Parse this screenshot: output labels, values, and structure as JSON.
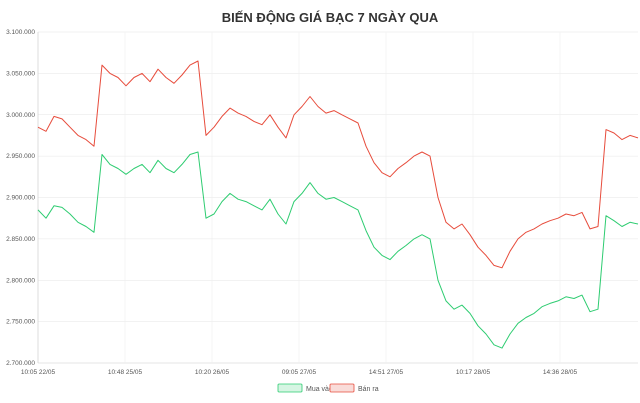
{
  "chart_data": {
    "type": "line",
    "title": "BIẾN ĐỘNG GIÁ BẠC 7 NGÀY QUA",
    "xlabel": "",
    "ylabel": "",
    "x_tick_labels": [
      "10:05 22/05",
      "10:48 25/05",
      "10:20 26/05",
      "09:05 27/05",
      "14:51 27/05",
      "10:17 28/05",
      "14:36 28/05"
    ],
    "y_tick_labels": [
      "2.700.000",
      "2.750.000",
      "2.800.000",
      "2.850.000",
      "2.900.000",
      "2.950.000",
      "3.000.000",
      "3.050.000",
      "3.100.000"
    ],
    "ylim": [
      2700000,
      3100000
    ],
    "grid": true,
    "legend_position": "bottom",
    "series": [
      {
        "name": "Mua vào",
        "color": "#2ecc71",
        "fill": "#d6f5e3",
        "values": [
          2885000,
          2875000,
          2890000,
          2888000,
          2880000,
          2870000,
          2865000,
          2858000,
          2952000,
          2940000,
          2935000,
          2928000,
          2935000,
          2940000,
          2930000,
          2945000,
          2935000,
          2930000,
          2940000,
          2952000,
          2955000,
          2875000,
          2880000,
          2895000,
          2905000,
          2898000,
          2895000,
          2890000,
          2885000,
          2898000,
          2880000,
          2868000,
          2895000,
          2905000,
          2918000,
          2905000,
          2898000,
          2900000,
          2895000,
          2890000,
          2885000,
          2860000,
          2840000,
          2830000,
          2825000,
          2835000,
          2842000,
          2850000,
          2855000,
          2850000,
          2800000,
          2775000,
          2765000,
          2770000,
          2760000,
          2745000,
          2735000,
          2722000,
          2718000,
          2735000,
          2748000,
          2755000,
          2760000,
          2768000,
          2772000,
          2775000,
          2780000,
          2778000,
          2782000,
          2762000,
          2765000,
          2878000,
          2872000,
          2865000,
          2870000,
          2868000
        ]
      },
      {
        "name": "Bán ra",
        "color": "#e74c3c",
        "fill": "#f9dcd9",
        "values": [
          2985000,
          2980000,
          2998000,
          2995000,
          2985000,
          2975000,
          2970000,
          2962000,
          3060000,
          3050000,
          3045000,
          3035000,
          3045000,
          3050000,
          3040000,
          3055000,
          3045000,
          3038000,
          3048000,
          3060000,
          3065000,
          2975000,
          2985000,
          2998000,
          3008000,
          3002000,
          2998000,
          2992000,
          2988000,
          3000000,
          2985000,
          2972000,
          3000000,
          3010000,
          3022000,
          3010000,
          3002000,
          3005000,
          3000000,
          2995000,
          2990000,
          2962000,
          2942000,
          2930000,
          2925000,
          2935000,
          2942000,
          2950000,
          2955000,
          2950000,
          2900000,
          2870000,
          2862000,
          2868000,
          2855000,
          2840000,
          2830000,
          2818000,
          2815000,
          2835000,
          2850000,
          2858000,
          2862000,
          2868000,
          2872000,
          2875000,
          2880000,
          2878000,
          2882000,
          2862000,
          2865000,
          2982000,
          2978000,
          2970000,
          2975000,
          2972000
        ]
      }
    ]
  }
}
